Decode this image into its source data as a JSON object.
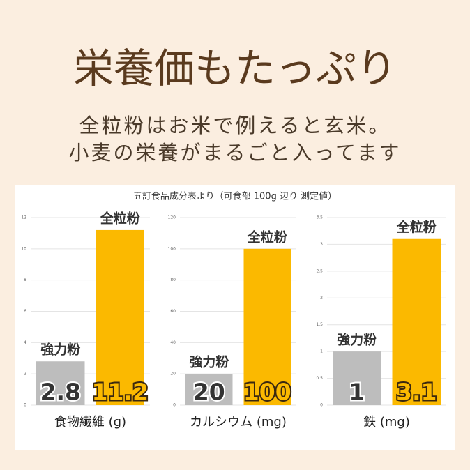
{
  "header": {
    "title": "栄養価もたっぷり",
    "lines": [
      "全粒粉はお米で例えると玄米。",
      "小麦の栄養がまるごと入ってます"
    ],
    "source": "五訂食品成分表より（可食部 100g 辺り 測定値）"
  },
  "chart_data": [
    {
      "type": "bar",
      "x_label": "食物繊維 (g)",
      "categories": [
        "強力粉",
        "全粒粉"
      ],
      "values": [
        2.8,
        11.2
      ],
      "colors": [
        "#bdbdbd",
        "#fbb900"
      ],
      "ylim": [
        0,
        12
      ],
      "yticks": [
        0,
        2,
        4,
        6,
        8,
        10,
        12
      ],
      "grid": true
    },
    {
      "type": "bar",
      "x_label": "カルシウム (mg)",
      "categories": [
        "強力粉",
        "全粒粉"
      ],
      "values": [
        20,
        100
      ],
      "colors": [
        "#bdbdbd",
        "#fbb900"
      ],
      "ylim": [
        0,
        120
      ],
      "yticks": [
        0,
        20,
        40,
        60,
        80,
        100,
        120
      ],
      "grid": true
    },
    {
      "type": "bar",
      "x_label": "鉄 (mg)",
      "categories": [
        "強力粉",
        "全粒粉"
      ],
      "values": [
        1,
        3.1
      ],
      "colors": [
        "#bdbdbd",
        "#fbb900"
      ],
      "ylim": [
        0,
        3.5
      ],
      "yticks": [
        0,
        0.5,
        1,
        1.5,
        2,
        2.5,
        3,
        3.5
      ],
      "grid": true
    }
  ]
}
